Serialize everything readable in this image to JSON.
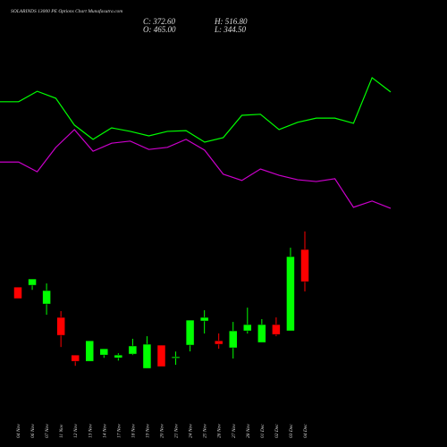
{
  "chart_data": [
    {
      "type": "candlestick",
      "title": "SOLARINDS 13000 PE Options Chart Munafasutra.com",
      "header": [
        "C: 372.60",
        "O: 465.00",
        "H: 516.80",
        "L: 344.50"
      ],
      "categories": [
        "04 Nov",
        "06 Nov",
        "07 Nov",
        "11 Nov",
        "12 Nov",
        "13 Nov",
        "14 Nov",
        "17 Nov",
        "18 Nov",
        "19 Nov",
        "20 Nov",
        "21 Nov",
        "24 Nov",
        "25 Nov",
        "26 Nov",
        "27 Nov",
        "28 Nov",
        "01 Dec",
        "02 Dec",
        "03 Dec",
        "04 Dec"
      ],
      "open": [
        357,
        362.3,
        308.4,
        270,
        162,
        144,
        162,
        154,
        164.7,
        123.6,
        190.4,
        154,
        190.4,
        259.7,
        203,
        182.7,
        231.4,
        198,
        249.4,
        231.4,
        465
      ],
      "high": [
        357,
        380.3,
        367.5,
        288,
        162,
        203,
        180,
        167,
        208.6,
        216,
        190.4,
        172,
        262.2,
        290.5,
        224,
        257,
        298,
        265,
        270,
        470,
        516.8
      ],
      "low": [
        324,
        349,
        277.6,
        185,
        131,
        144,
        154,
        146,
        162,
        123.6,
        128.8,
        133.9,
        172.4,
        223.7,
        180,
        151.9,
        223.7,
        198,
        216,
        231.4,
        344.5
      ],
      "close": [
        324,
        380.3,
        347,
        218.6,
        144,
        203,
        180,
        162,
        188,
        193,
        128.8,
        157,
        262.2,
        270,
        193,
        231.4,
        249.4,
        249.4,
        221,
        444.5,
        372.6
      ],
      "up_color": "#00ff00",
      "down_color": "#ff0000",
      "ylim": [
        -102,
        1181
      ]
    },
    {
      "type": "line",
      "categories": [
        null,
        null,
        null,
        null,
        null,
        null,
        null,
        null,
        null,
        null,
        null,
        null,
        null,
        null,
        null,
        null,
        null,
        null,
        null,
        null,
        null,
        null
      ],
      "series": [
        {
          "color": "#00ff00",
          "values": [
            889,
            889,
            919,
            899,
            822,
            781,
            814,
            804,
            791,
            804,
            806,
            773,
            786,
            850,
            853,
            809,
            830,
            842,
            842,
            827,
            958,
            917
          ]
        },
        {
          "color": "#cc00cc",
          "values": [
            716,
            716,
            688,
            758,
            809,
            747,
            770,
            776,
            752,
            758,
            781,
            750,
            681,
            663,
            696,
            678,
            665,
            660,
            668,
            586,
            604,
            583
          ]
        }
      ],
      "ylim": [
        -102,
        1181
      ]
    }
  ]
}
